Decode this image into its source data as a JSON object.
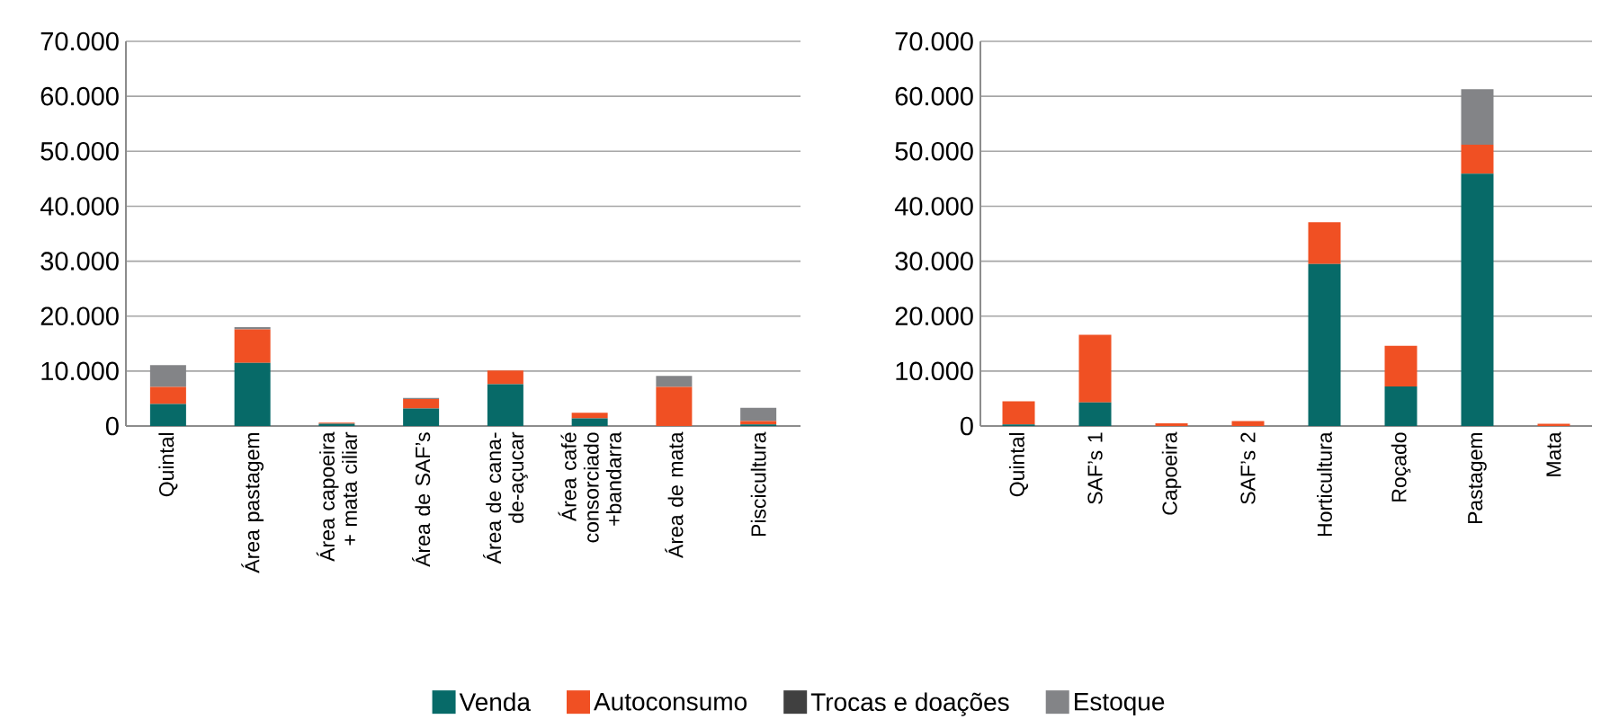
{
  "chart_data": [
    {
      "type": "bar",
      "stacked": true,
      "grid": "y",
      "legend": "bottom",
      "categories": [
        "Quintal",
        "Área pastagem",
        "Área capoeira + mata ciliar",
        "Área de SAF’s",
        "Área de cana-de-açucar",
        "Área café consorciado +bandarra",
        "Área de mata",
        "Piscicultura"
      ],
      "ylim": [
        0,
        70000
      ],
      "yticks": [
        {
          "value": 0,
          "label": "0"
        },
        {
          "value": 10000,
          "label": "10.000"
        },
        {
          "value": 20000,
          "label": "20.000"
        },
        {
          "value": 30000,
          "label": "30.000"
        },
        {
          "value": 40000,
          "label": "40.000"
        },
        {
          "value": 50000,
          "label": "50.000"
        },
        {
          "value": 60000,
          "label": "60.000"
        },
        {
          "value": 70000,
          "label": "70.000"
        }
      ],
      "series": [
        {
          "name": "Venda",
          "color": "#076a68",
          "values": [
            4000,
            11500,
            400,
            3200,
            7600,
            1400,
            0,
            300
          ]
        },
        {
          "name": "Autoconsumo",
          "color": "#f05023",
          "values": [
            3100,
            6100,
            200,
            1700,
            2500,
            1000,
            7100,
            600
          ]
        },
        {
          "name": "Trocas e doações",
          "color": "#404040",
          "values": [
            0,
            0,
            0,
            0,
            0,
            0,
            0,
            0
          ]
        },
        {
          "name": "Estoque",
          "color": "#838487",
          "values": [
            4000,
            400,
            0,
            200,
            0,
            0,
            2000,
            2400
          ]
        }
      ]
    },
    {
      "type": "bar",
      "stacked": true,
      "grid": "y",
      "categories": [
        "Quintal",
        "SAF’s 1",
        "Capoeira",
        "SAF’s 2",
        "Horticultura",
        "Roçado",
        "Pastagem",
        "Mata"
      ],
      "ylim": [
        0,
        70000
      ],
      "yticks": [
        {
          "value": 0,
          "label": "0"
        },
        {
          "value": 10000,
          "label": "10.000"
        },
        {
          "value": 20000,
          "label": "20.000"
        },
        {
          "value": 30000,
          "label": "30.000"
        },
        {
          "value": 40000,
          "label": "40.000"
        },
        {
          "value": 50000,
          "label": "50.000"
        },
        {
          "value": 60000,
          "label": "60.000"
        },
        {
          "value": 70000,
          "label": "70.000"
        }
      ],
      "series": [
        {
          "color": "#076a68",
          "values": [
            300,
            4300,
            0,
            0,
            29500,
            7200,
            45900,
            0
          ]
        },
        {
          "color": "#f05023",
          "values": [
            4200,
            12300,
            500,
            900,
            7600,
            7400,
            5300,
            400
          ]
        },
        {
          "color": "#404040",
          "values": [
            0,
            0,
            0,
            0,
            0,
            0,
            0,
            0
          ]
        },
        {
          "color": "#838487",
          "values": [
            0,
            0,
            0,
            0,
            0,
            0,
            10100,
            0
          ]
        }
      ]
    }
  ]
}
